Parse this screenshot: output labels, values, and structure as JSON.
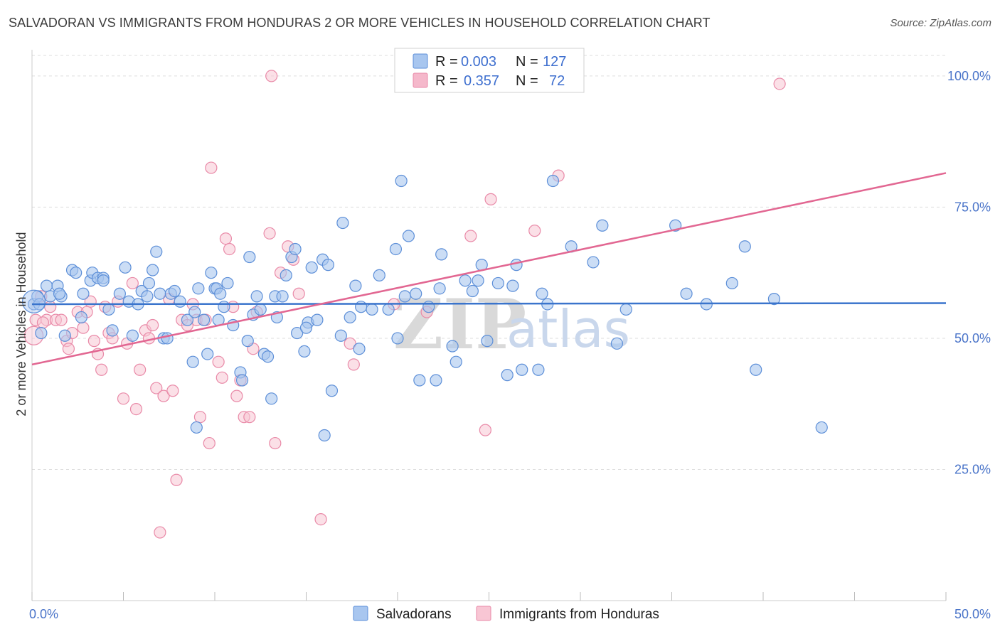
{
  "header": {
    "title": "SALVADORAN VS IMMIGRANTS FROM HONDURAS 2 OR MORE VEHICLES IN HOUSEHOLD CORRELATION CHART",
    "source": "Source: ZipAtlas.com"
  },
  "watermark": {
    "zip": "ZIP",
    "atlas": "atlas"
  },
  "legend": {
    "rows": [
      {
        "r_label": "R =",
        "r_value": "0.003",
        "n_label": "N =",
        "n_value": "127",
        "color": "#a8c6ef"
      },
      {
        "r_label": "R =",
        "r_value": "0.357",
        "n_label": "N =",
        "n_value": "72",
        "color": "#f5b8cb"
      }
    ]
  },
  "colors": {
    "blue_fill": "#a8c6ef",
    "blue_stroke": "#5d8fd8",
    "blue_line": "#3a74cc",
    "pink_fill": "#f8c6d4",
    "pink_stroke": "#e98aa8",
    "pink_line": "#e26792",
    "tick_text": "#4a74c9",
    "grid": "#dddddd"
  },
  "chart_data": {
    "type": "scatter",
    "title": "SALVADORAN VS IMMIGRANTS FROM HONDURAS 2 OR MORE VEHICLES IN HOUSEHOLD CORRELATION CHART",
    "xlabel": "",
    "ylabel": "2 or more Vehicles in Household",
    "xlim": [
      0,
      50
    ],
    "ylim": [
      0,
      105
    ],
    "x_tick_labels": [
      "0.0%",
      "50.0%"
    ],
    "x_tick_values": [
      0,
      50
    ],
    "y_tick_labels": [
      "25.0%",
      "50.0%",
      "75.0%",
      "100.0%"
    ],
    "y_tick_values": [
      25,
      50,
      75,
      100
    ],
    "grid": "horizontal dashed",
    "legend_position": "top-center",
    "series": [
      {
        "name": "Salvadorans",
        "color": "#a8c6ef",
        "trend": {
          "x": [
            0,
            50
          ],
          "y": [
            56.5,
            56.7
          ]
        },
        "points": [
          [
            0.1,
            56.5
          ],
          [
            0.3,
            58
          ],
          [
            0.5,
            51
          ],
          [
            0.8,
            60
          ],
          [
            1.0,
            58
          ],
          [
            1.4,
            60
          ],
          [
            1.6,
            58
          ],
          [
            1.8,
            50.5
          ],
          [
            2.2,
            63
          ],
          [
            2.4,
            62.5
          ],
          [
            2.7,
            54
          ],
          [
            2.8,
            58.5
          ],
          [
            3.2,
            61
          ],
          [
            3.3,
            62.5
          ],
          [
            3.6,
            61.5
          ],
          [
            3.9,
            61.5
          ],
          [
            4.2,
            55.5
          ],
          [
            4.4,
            51.5
          ],
          [
            4.8,
            58.5
          ],
          [
            5.1,
            63.5
          ],
          [
            5.3,
            57
          ],
          [
            5.5,
            50.5
          ],
          [
            5.8,
            56.5
          ],
          [
            6.0,
            59
          ],
          [
            6.4,
            60.5
          ],
          [
            6.6,
            63
          ],
          [
            6.8,
            66.5
          ],
          [
            7.0,
            58.5
          ],
          [
            7.2,
            50
          ],
          [
            7.4,
            50
          ],
          [
            7.6,
            58.5
          ],
          [
            7.8,
            59
          ],
          [
            8.1,
            57
          ],
          [
            8.5,
            53.5
          ],
          [
            8.8,
            45.5
          ],
          [
            9.0,
            33
          ],
          [
            9.1,
            59.5
          ],
          [
            9.4,
            53.5
          ],
          [
            9.6,
            47
          ],
          [
            9.8,
            62.5
          ],
          [
            10.0,
            59.5
          ],
          [
            10.1,
            59.5
          ],
          [
            10.3,
            58.5
          ],
          [
            10.5,
            56
          ],
          [
            10.7,
            60.5
          ],
          [
            11.0,
            52.5
          ],
          [
            11.4,
            43.5
          ],
          [
            11.5,
            42
          ],
          [
            11.8,
            49.5
          ],
          [
            11.9,
            65.5
          ],
          [
            12.1,
            54.5
          ],
          [
            12.3,
            58
          ],
          [
            12.5,
            55.5
          ],
          [
            12.7,
            47
          ],
          [
            12.9,
            46.5
          ],
          [
            13.1,
            38.5
          ],
          [
            13.3,
            58
          ],
          [
            13.4,
            54
          ],
          [
            13.7,
            58
          ],
          [
            13.9,
            62
          ],
          [
            14.2,
            65.5
          ],
          [
            14.4,
            67
          ],
          [
            14.5,
            51
          ],
          [
            14.9,
            47.5
          ],
          [
            15.1,
            53
          ],
          [
            15.3,
            63.5
          ],
          [
            15.6,
            53.5
          ],
          [
            15.9,
            65
          ],
          [
            16.2,
            64
          ],
          [
            16.4,
            40
          ],
          [
            16.0,
            31.5
          ],
          [
            16.9,
            50.5
          ],
          [
            17.0,
            72
          ],
          [
            17.4,
            54
          ],
          [
            17.7,
            60
          ],
          [
            18.0,
            56
          ],
          [
            18.6,
            55.5
          ],
          [
            19.0,
            62
          ],
          [
            19.5,
            55.5
          ],
          [
            19.9,
            67
          ],
          [
            20.0,
            50
          ],
          [
            20.2,
            80
          ],
          [
            20.4,
            58
          ],
          [
            20.6,
            69.5
          ],
          [
            21.0,
            58.5
          ],
          [
            21.2,
            42
          ],
          [
            21.7,
            56
          ],
          [
            22.1,
            42
          ],
          [
            22.3,
            59.5
          ],
          [
            22.4,
            66
          ],
          [
            23.0,
            48.5
          ],
          [
            23.2,
            45.5
          ],
          [
            23.7,
            61
          ],
          [
            24.1,
            59
          ],
          [
            24.4,
            61
          ],
          [
            24.6,
            64
          ],
          [
            24.9,
            49.5
          ],
          [
            25.5,
            60.5
          ],
          [
            26.0,
            43
          ],
          [
            26.3,
            60
          ],
          [
            26.5,
            64
          ],
          [
            26.8,
            44
          ],
          [
            27.7,
            44
          ],
          [
            27.9,
            58.5
          ],
          [
            28.2,
            56.5
          ],
          [
            28.5,
            80
          ],
          [
            29.5,
            67.5
          ],
          [
            30.7,
            64.5
          ],
          [
            31.2,
            71.5
          ],
          [
            32.0,
            49
          ],
          [
            32.5,
            55.5
          ],
          [
            35.2,
            71.5
          ],
          [
            35.8,
            58.5
          ],
          [
            36.9,
            56.5
          ],
          [
            38.3,
            60.5
          ],
          [
            39.0,
            67.5
          ],
          [
            39.6,
            44
          ],
          [
            40.6,
            57.5
          ],
          [
            43.2,
            33
          ],
          [
            0.4,
            56.5
          ],
          [
            1.5,
            58.5
          ],
          [
            3.9,
            61
          ],
          [
            6.3,
            58
          ],
          [
            8.9,
            55
          ],
          [
            10.2,
            53.5
          ],
          [
            15.0,
            52
          ],
          [
            17.9,
            48
          ]
        ]
      },
      {
        "name": "Immigrants from Honduras",
        "color": "#f8c6d4",
        "trend": {
          "x": [
            0,
            50
          ],
          "y": [
            45,
            81.5
          ]
        },
        "points": [
          [
            0.2,
            53.5
          ],
          [
            0.5,
            58
          ],
          [
            0.8,
            53.5
          ],
          [
            1.0,
            56
          ],
          [
            1.3,
            53.5
          ],
          [
            1.6,
            53.5
          ],
          [
            1.9,
            49.5
          ],
          [
            2.0,
            48
          ],
          [
            2.2,
            51
          ],
          [
            2.5,
            55
          ],
          [
            2.8,
            52
          ],
          [
            3.2,
            57
          ],
          [
            3.4,
            49.5
          ],
          [
            3.6,
            47
          ],
          [
            3.8,
            44
          ],
          [
            4.0,
            56
          ],
          [
            4.2,
            51
          ],
          [
            4.4,
            50
          ],
          [
            4.7,
            57
          ],
          [
            5.0,
            38.5
          ],
          [
            5.2,
            49
          ],
          [
            5.5,
            60.5
          ],
          [
            5.7,
            36.5
          ],
          [
            5.9,
            44
          ],
          [
            6.2,
            51.5
          ],
          [
            6.4,
            50
          ],
          [
            6.6,
            52.5
          ],
          [
            6.8,
            40.5
          ],
          [
            7.0,
            13
          ],
          [
            7.2,
            39
          ],
          [
            7.5,
            57.5
          ],
          [
            7.7,
            40
          ],
          [
            7.9,
            23
          ],
          [
            8.2,
            53.5
          ],
          [
            8.5,
            52.5
          ],
          [
            8.8,
            56.5
          ],
          [
            9.0,
            53.5
          ],
          [
            9.2,
            35
          ],
          [
            9.5,
            53.5
          ],
          [
            9.7,
            30
          ],
          [
            9.8,
            82.5
          ],
          [
            10.2,
            45.5
          ],
          [
            10.4,
            42.5
          ],
          [
            10.6,
            69
          ],
          [
            10.8,
            67
          ],
          [
            11.0,
            56
          ],
          [
            11.2,
            39
          ],
          [
            11.4,
            42
          ],
          [
            11.6,
            35
          ],
          [
            11.9,
            35
          ],
          [
            12.1,
            48
          ],
          [
            12.3,
            55
          ],
          [
            13.0,
            70
          ],
          [
            13.3,
            30
          ],
          [
            13.6,
            62.5
          ],
          [
            14.0,
            67.5
          ],
          [
            14.3,
            65
          ],
          [
            14.6,
            58.5
          ],
          [
            15.8,
            15.5
          ],
          [
            17.4,
            49
          ],
          [
            17.6,
            45
          ],
          [
            19.8,
            56.5
          ],
          [
            21.6,
            55
          ],
          [
            24.0,
            69.5
          ],
          [
            24.8,
            32.5
          ],
          [
            25.1,
            76.5
          ],
          [
            27.5,
            70.5
          ],
          [
            28.8,
            81
          ],
          [
            13.1,
            100
          ],
          [
            40.9,
            98.5
          ],
          [
            0.6,
            53
          ],
          [
            3.0,
            55
          ]
        ]
      }
    ]
  },
  "bottom_legend": {
    "items": [
      {
        "label": "Salvadorans",
        "color": "#a8c6ef"
      },
      {
        "label": "Immigrants from Honduras",
        "color": "#f8c6d4"
      }
    ]
  }
}
